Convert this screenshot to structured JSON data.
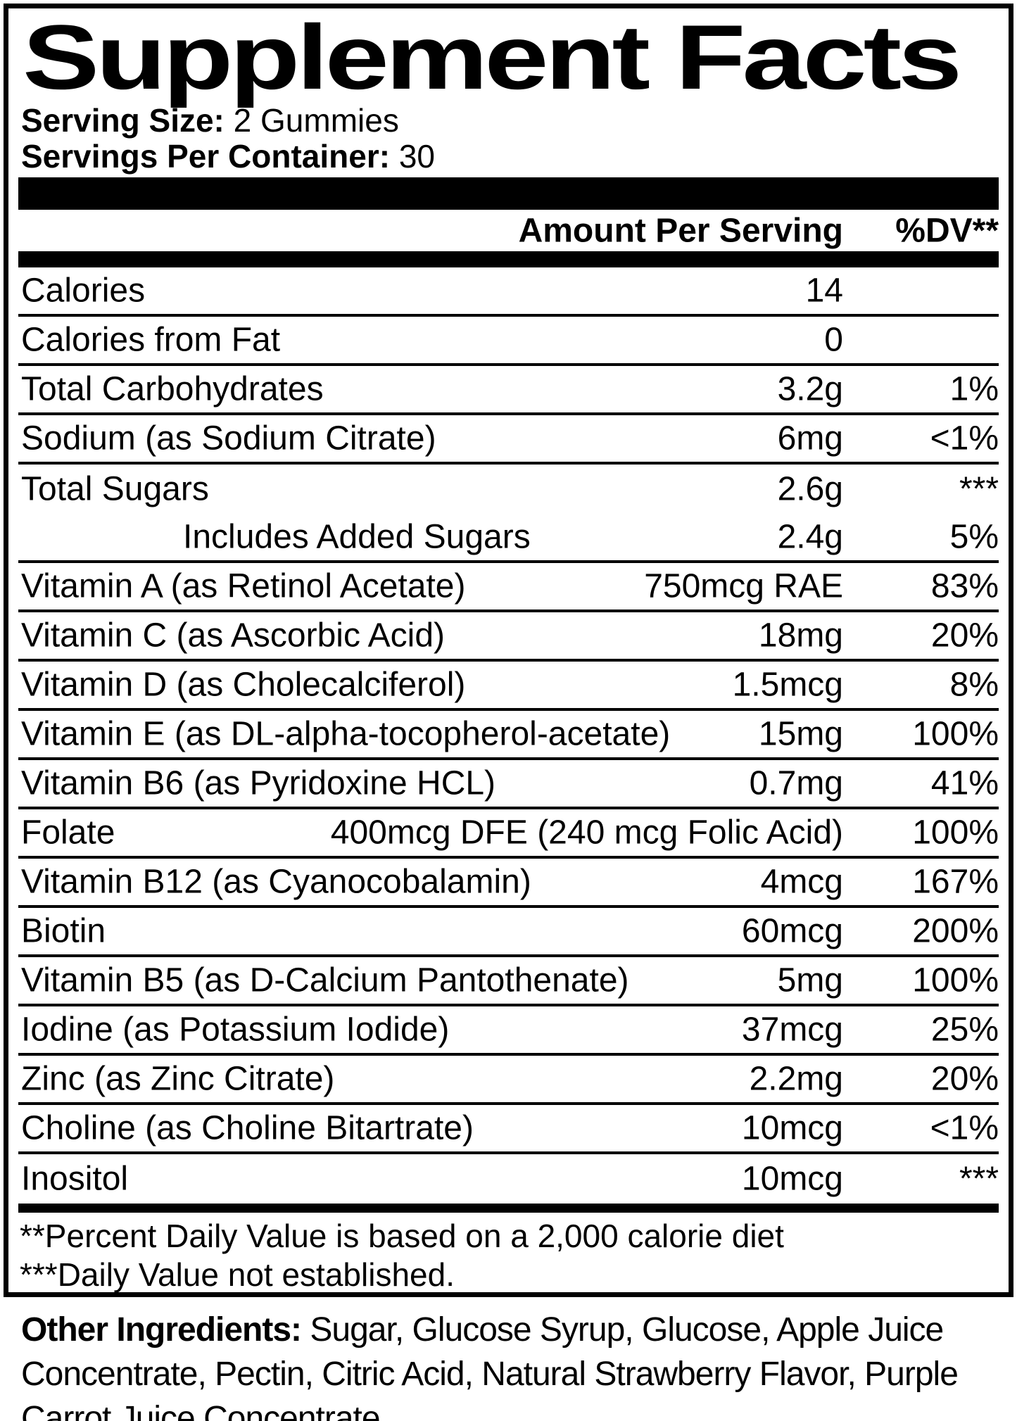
{
  "label": {
    "title": "Supplement Facts",
    "serving_size": {
      "label": "Serving Size:",
      "value": "2 Gummies"
    },
    "servings_per_container": {
      "label": "Servings Per Container:",
      "value": "30"
    },
    "columns": {
      "amount": "Amount Per Serving",
      "dv": "%DV**"
    },
    "rows": [
      {
        "name": "Calories",
        "amount": "14",
        "dv": "",
        "indent": false,
        "sep": true
      },
      {
        "name": "Calories from Fat",
        "amount": "0",
        "dv": "",
        "indent": false,
        "sep": true
      },
      {
        "name": "Total Carbohydrates",
        "amount": "3.2g",
        "dv": "1%",
        "indent": false,
        "sep": true
      },
      {
        "name": "Sodium (as Sodium Citrate)",
        "amount": "6mg",
        "dv": "<1%",
        "indent": false,
        "sep": true
      },
      {
        "name": "Total Sugars",
        "amount": "2.6g",
        "dv": "***",
        "indent": false,
        "sep": false
      },
      {
        "name": "Includes Added Sugars",
        "amount": "2.4g",
        "dv": "5%",
        "indent": true,
        "sep": true
      },
      {
        "name": "Vitamin A (as Retinol Acetate)",
        "amount": "750mcg RAE",
        "dv": "83%",
        "indent": false,
        "sep": true
      },
      {
        "name": "Vitamin C (as Ascorbic Acid)",
        "amount": "18mg",
        "dv": "20%",
        "indent": false,
        "sep": true
      },
      {
        "name": "Vitamin D (as Cholecalciferol)",
        "amount": "1.5mcg",
        "dv": "8%",
        "indent": false,
        "sep": true
      },
      {
        "name": "Vitamin E (as DL-alpha-tocopherol-acetate)",
        "amount": "15mg",
        "dv": "100%",
        "indent": false,
        "sep": true
      },
      {
        "name": "Vitamin B6 (as Pyridoxine HCL)",
        "amount": "0.7mg",
        "dv": "41%",
        "indent": false,
        "sep": true
      },
      {
        "name": "Folate",
        "amount": "400mcg DFE (240 mcg Folic Acid)",
        "dv": "100%",
        "indent": false,
        "sep": true
      },
      {
        "name": "Vitamin B12 (as Cyanocobalamin)",
        "amount": "4mcg",
        "dv": "167%",
        "indent": false,
        "sep": true
      },
      {
        "name": "Biotin",
        "amount": "60mcg",
        "dv": "200%",
        "indent": false,
        "sep": true
      },
      {
        "name": "Vitamin B5 (as D-Calcium Pantothenate)",
        "amount": "5mg",
        "dv": "100%",
        "indent": false,
        "sep": true
      },
      {
        "name": "Iodine (as Potassium Iodide)",
        "amount": "37mcg",
        "dv": "25%",
        "indent": false,
        "sep": true
      },
      {
        "name": "Zinc (as Zinc Citrate)",
        "amount": "2.2mg",
        "dv": "20%",
        "indent": false,
        "sep": true
      },
      {
        "name": "Choline (as Choline Bitartrate)",
        "amount": "10mcg",
        "dv": "<1%",
        "indent": false,
        "sep": true
      },
      {
        "name": "Inositol",
        "amount": "10mcg",
        "dv": "***",
        "indent": false,
        "sep": false
      }
    ],
    "footnotes": [
      "**Percent Daily Value is based on a 2,000 calorie diet",
      "***Daily Value not established."
    ],
    "other_ingredients": {
      "label": "Other Ingredients:",
      "text": " Sugar, Glucose Syrup, Glucose, Apple Juice Concentrate, Pectin, Citric Acid, Natural Strawberry Flavor, Purple Carrot Juice Concentrate."
    },
    "colors": {
      "ink": "#000000",
      "background": "#ffffff"
    }
  }
}
